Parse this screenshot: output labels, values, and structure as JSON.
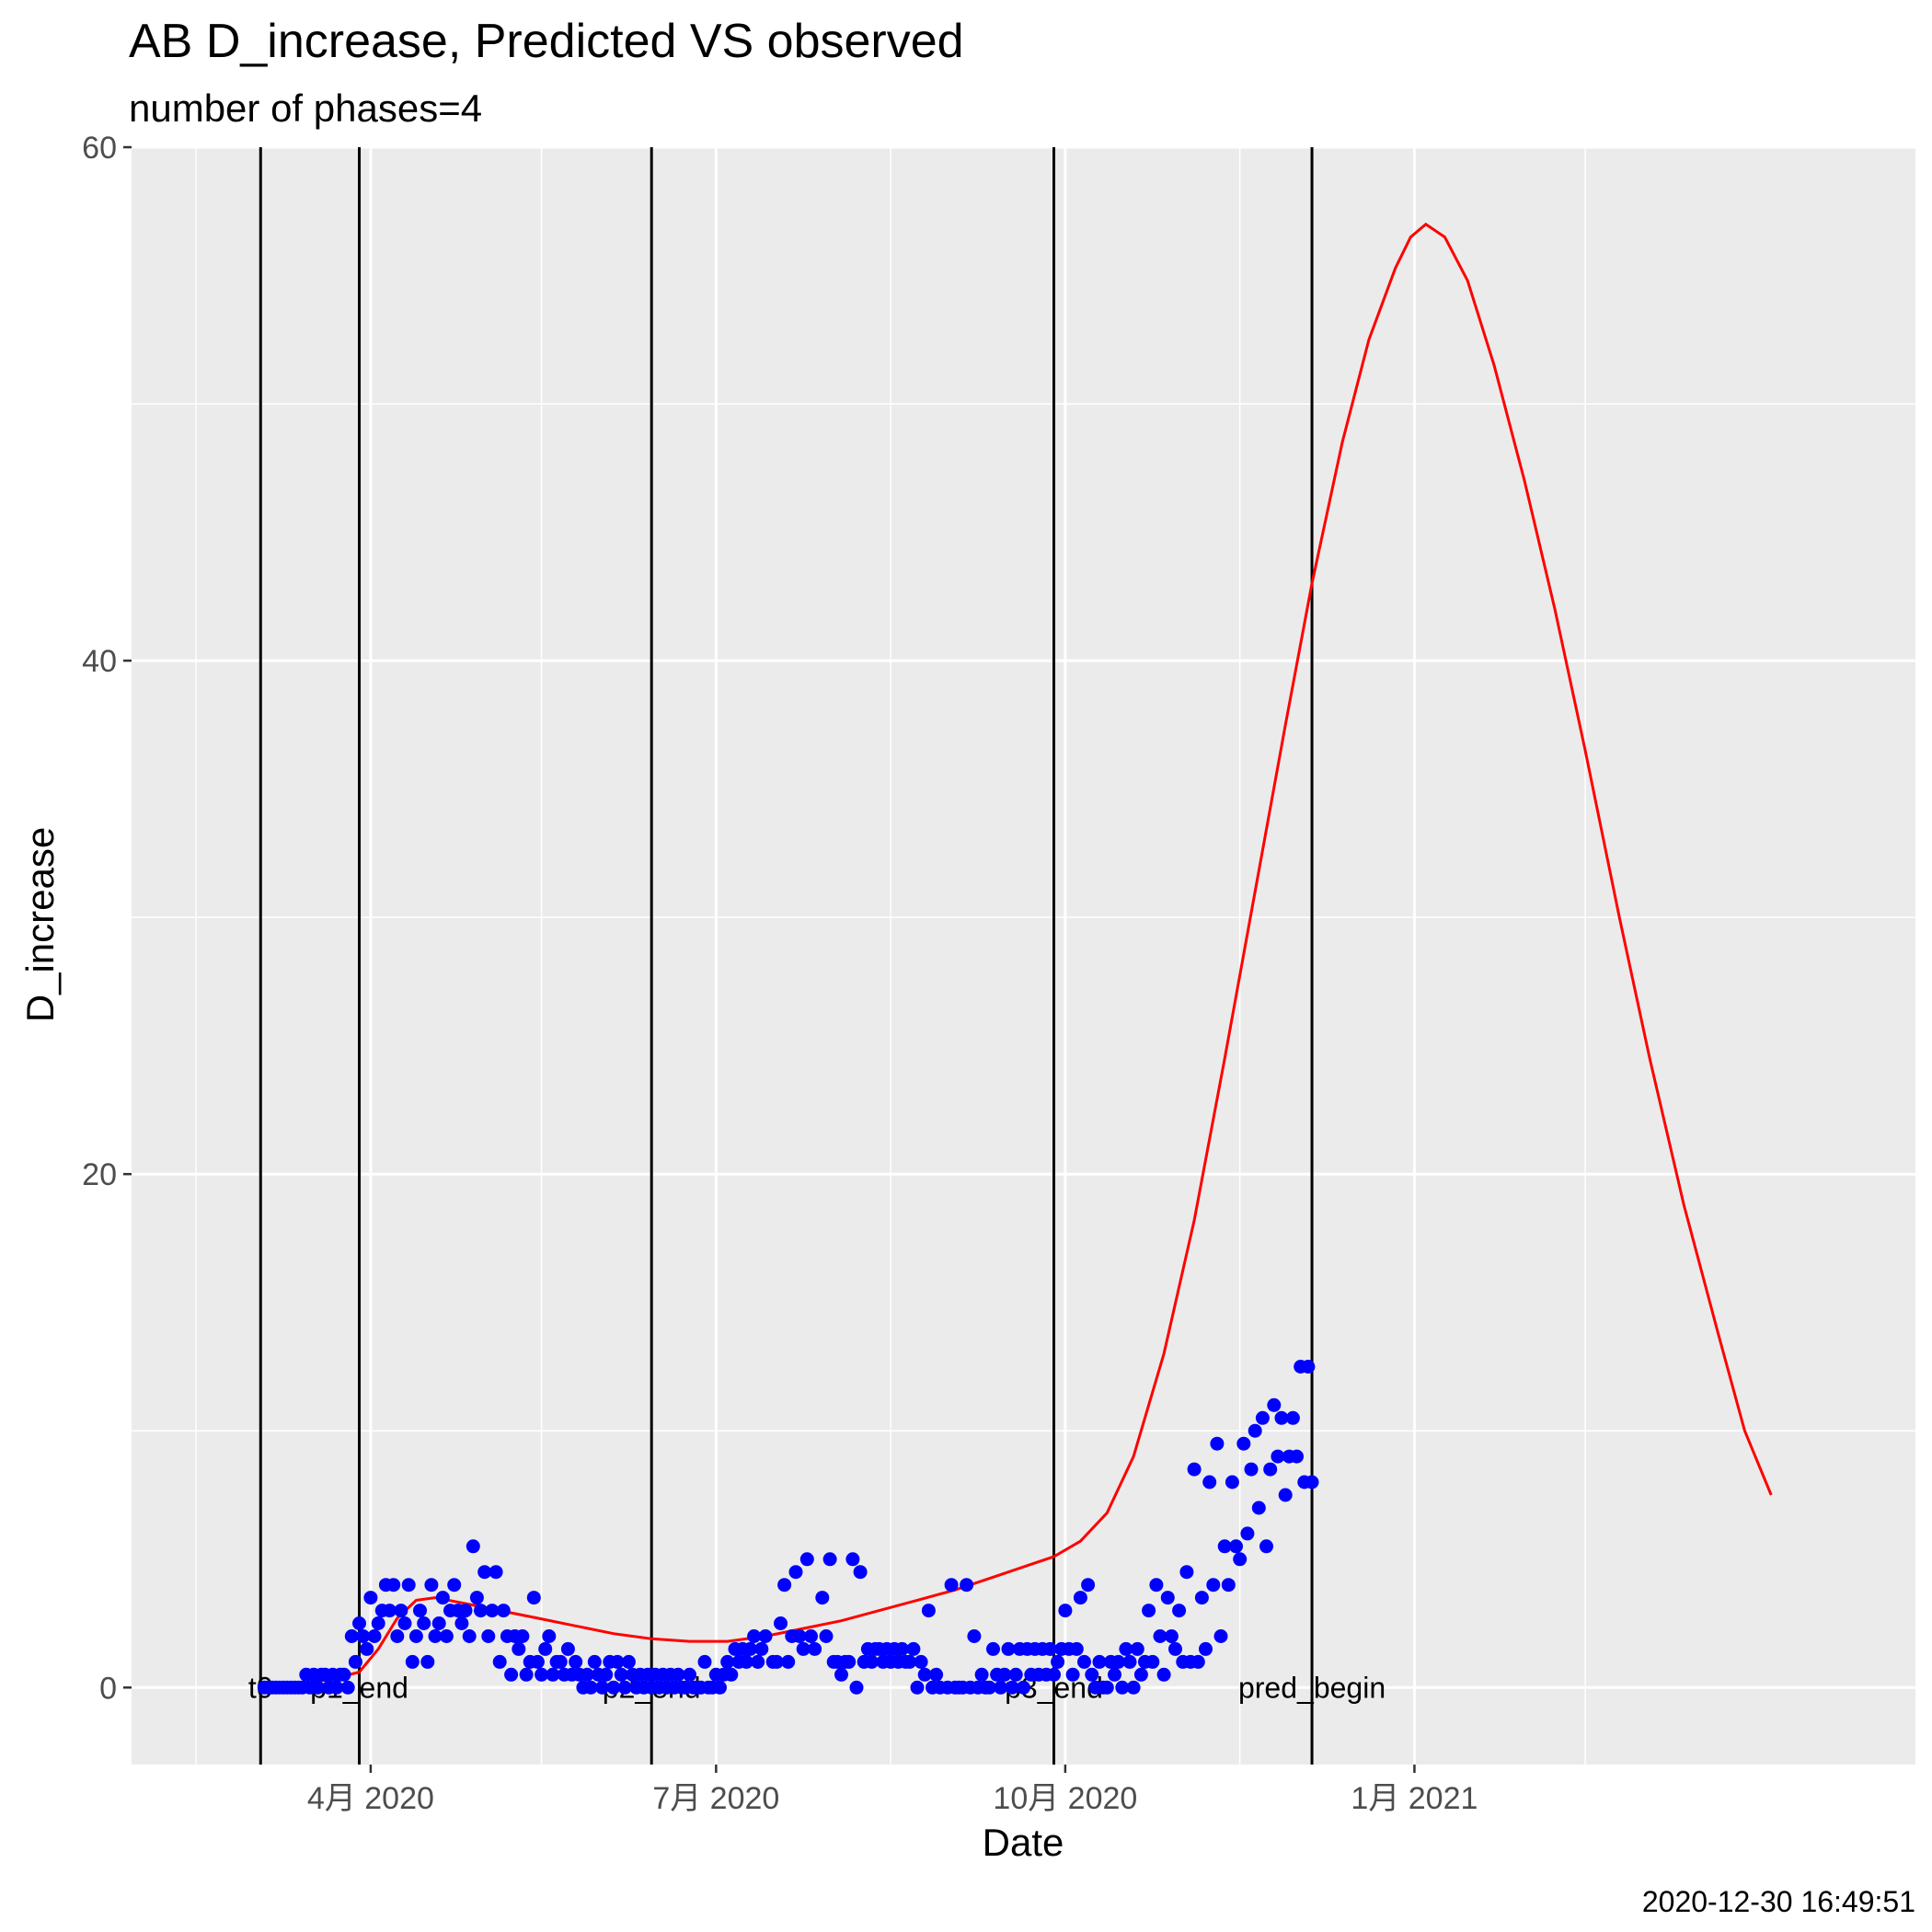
{
  "chart_data": {
    "type": "scatter",
    "title": "AB D_increase, Predicted VS observed",
    "subtitle": "number of phases=4",
    "xlabel": "Date",
    "ylabel": "D_increase",
    "caption": "2020-12-30 16:49:51",
    "ylim": [
      -3,
      60
    ],
    "xlim_days": [
      -32,
      438
    ],
    "x_origin_date": "2020-03-01",
    "y_ticks": [
      0,
      20,
      40,
      60
    ],
    "x_ticks": [
      {
        "label": "4月 2020",
        "day": 31
      },
      {
        "label": "7月 2020",
        "day": 122
      },
      {
        "label": "10月 2020",
        "day": 214
      },
      {
        "label": "1月 2021",
        "day": 306
      }
    ],
    "x_minor_days": [
      -15,
      76,
      168,
      260,
      351
    ],
    "phase_lines": [
      {
        "label": "t0",
        "day": 2
      },
      {
        "label": "p1_end",
        "day": 28
      },
      {
        "label": "p2_end",
        "day": 105
      },
      {
        "label": "p3_end",
        "day": 211
      },
      {
        "label": "pred_begin",
        "day": 279
      }
    ],
    "series": [
      {
        "name": "observed",
        "color": "#0000ff",
        "points": [
          [
            3,
            0
          ],
          [
            4,
            0
          ],
          [
            5,
            0
          ],
          [
            6,
            0
          ],
          [
            7,
            0
          ],
          [
            8,
            0
          ],
          [
            9,
            0
          ],
          [
            10,
            0
          ],
          [
            11,
            0
          ],
          [
            12,
            0
          ],
          [
            13,
            0
          ],
          [
            14,
            0.5
          ],
          [
            15,
            0
          ],
          [
            16,
            0.5
          ],
          [
            17,
            0
          ],
          [
            18,
            0.5
          ],
          [
            19,
            0.5
          ],
          [
            20,
            0
          ],
          [
            21,
            0.5
          ],
          [
            22,
            0
          ],
          [
            23,
            0.5
          ],
          [
            24,
            0.5
          ],
          [
            25,
            0
          ],
          [
            26,
            2
          ],
          [
            27,
            1
          ],
          [
            28,
            2.5
          ],
          [
            29,
            2
          ],
          [
            30,
            1.5
          ],
          [
            31,
            3.5
          ],
          [
            32,
            2
          ],
          [
            33,
            2.5
          ],
          [
            34,
            3
          ],
          [
            35,
            4
          ],
          [
            36,
            3
          ],
          [
            37,
            4
          ],
          [
            38,
            2
          ],
          [
            39,
            3
          ],
          [
            40,
            2.5
          ],
          [
            41,
            4
          ],
          [
            42,
            1
          ],
          [
            43,
            2
          ],
          [
            44,
            3
          ],
          [
            45,
            2.5
          ],
          [
            46,
            1
          ],
          [
            47,
            4
          ],
          [
            48,
            2
          ],
          [
            49,
            2.5
          ],
          [
            50,
            3.5
          ],
          [
            51,
            2
          ],
          [
            52,
            3
          ],
          [
            53,
            4
          ],
          [
            54,
            3
          ],
          [
            55,
            2.5
          ],
          [
            56,
            3
          ],
          [
            57,
            2
          ],
          [
            58,
            5.5
          ],
          [
            59,
            3.5
          ],
          [
            60,
            3
          ],
          [
            61,
            4.5
          ],
          [
            62,
            2
          ],
          [
            63,
            3
          ],
          [
            64,
            4.5
          ],
          [
            65,
            1
          ],
          [
            66,
            3
          ],
          [
            67,
            2
          ],
          [
            68,
            0.5
          ],
          [
            69,
            2
          ],
          [
            70,
            1.5
          ],
          [
            71,
            2
          ],
          [
            72,
            0.5
          ],
          [
            73,
            1
          ],
          [
            74,
            3.5
          ],
          [
            75,
            1
          ],
          [
            76,
            0.5
          ],
          [
            77,
            1.5
          ],
          [
            78,
            2
          ],
          [
            79,
            0.5
          ],
          [
            80,
            1
          ],
          [
            81,
            1
          ],
          [
            82,
            0.5
          ],
          [
            83,
            1.5
          ],
          [
            84,
            0.5
          ],
          [
            85,
            1
          ],
          [
            86,
            0.5
          ],
          [
            87,
            0
          ],
          [
            88,
            0.5
          ],
          [
            89,
            0
          ],
          [
            90,
            1
          ],
          [
            91,
            0.5
          ],
          [
            92,
            0
          ],
          [
            93,
            0.5
          ],
          [
            94,
            1
          ],
          [
            95,
            0
          ],
          [
            96,
            1
          ],
          [
            97,
            0.5
          ],
          [
            98,
            0
          ],
          [
            99,
            1
          ],
          [
            100,
            0.5
          ],
          [
            101,
            0
          ],
          [
            102,
            0.5
          ],
          [
            103,
            0
          ],
          [
            104,
            0.5
          ],
          [
            105,
            0
          ],
          [
            106,
            0.5
          ],
          [
            107,
            0
          ],
          [
            108,
            0.5
          ],
          [
            109,
            0
          ],
          [
            110,
            0.5
          ],
          [
            111,
            0
          ],
          [
            112,
            0.5
          ],
          [
            113,
            0
          ],
          [
            114,
            0
          ],
          [
            115,
            0.5
          ],
          [
            116,
            0
          ],
          [
            117,
            0
          ],
          [
            118,
            0
          ],
          [
            119,
            1
          ],
          [
            120,
            0
          ],
          [
            121,
            0
          ],
          [
            122,
            0.5
          ],
          [
            123,
            0
          ],
          [
            124,
            0.5
          ],
          [
            125,
            1
          ],
          [
            126,
            0.5
          ],
          [
            127,
            1.5
          ],
          [
            128,
            1
          ],
          [
            129,
            1.5
          ],
          [
            130,
            1
          ],
          [
            131,
            1.5
          ],
          [
            132,
            2
          ],
          [
            133,
            1
          ],
          [
            134,
            1.5
          ],
          [
            135,
            2
          ],
          [
            137,
            1
          ],
          [
            138,
            1
          ],
          [
            139,
            2.5
          ],
          [
            140,
            4
          ],
          [
            141,
            1
          ],
          [
            142,
            2
          ],
          [
            143,
            4.5
          ],
          [
            144,
            2
          ],
          [
            145,
            1.5
          ],
          [
            146,
            5
          ],
          [
            147,
            2
          ],
          [
            148,
            1.5
          ],
          [
            150,
            3.5
          ],
          [
            151,
            2
          ],
          [
            152,
            5
          ],
          [
            153,
            1
          ],
          [
            154,
            1
          ],
          [
            155,
            0.5
          ],
          [
            156,
            1
          ],
          [
            157,
            1
          ],
          [
            158,
            5
          ],
          [
            159,
            0
          ],
          [
            160,
            4.5
          ],
          [
            161,
            1
          ],
          [
            162,
            1.5
          ],
          [
            163,
            1
          ],
          [
            164,
            1.5
          ],
          [
            165,
            1.5
          ],
          [
            166,
            1
          ],
          [
            167,
            1.5
          ],
          [
            168,
            1
          ],
          [
            169,
            1.5
          ],
          [
            170,
            1
          ],
          [
            171,
            1.5
          ],
          [
            172,
            1
          ],
          [
            173,
            1
          ],
          [
            174,
            1.5
          ],
          [
            175,
            0
          ],
          [
            176,
            1
          ],
          [
            177,
            0.5
          ],
          [
            178,
            3
          ],
          [
            179,
            0
          ],
          [
            180,
            0.5
          ],
          [
            181,
            0
          ],
          [
            183,
            0
          ],
          [
            184,
            4
          ],
          [
            185,
            0
          ],
          [
            186,
            0
          ],
          [
            187,
            0
          ],
          [
            188,
            4
          ],
          [
            189,
            0
          ],
          [
            190,
            2
          ],
          [
            191,
            0
          ],
          [
            192,
            0.5
          ],
          [
            193,
            0
          ],
          [
            194,
            0
          ],
          [
            195,
            1.5
          ],
          [
            196,
            0.5
          ],
          [
            197,
            0
          ],
          [
            198,
            0.5
          ],
          [
            199,
            1.5
          ],
          [
            200,
            0
          ],
          [
            201,
            0.5
          ],
          [
            202,
            1.5
          ],
          [
            203,
            0
          ],
          [
            204,
            1.5
          ],
          [
            205,
            0.5
          ],
          [
            206,
            1.5
          ],
          [
            207,
            0.5
          ],
          [
            208,
            1.5
          ],
          [
            209,
            0.5
          ],
          [
            210,
            1.5
          ],
          [
            211,
            0.5
          ],
          [
            212,
            1
          ],
          [
            213,
            1.5
          ],
          [
            214,
            3
          ],
          [
            215,
            1.5
          ],
          [
            216,
            0.5
          ],
          [
            217,
            1.5
          ],
          [
            218,
            3.5
          ],
          [
            219,
            1
          ],
          [
            220,
            4
          ],
          [
            221,
            0.5
          ],
          [
            222,
            0
          ],
          [
            223,
            1
          ],
          [
            224,
            0
          ],
          [
            225,
            0
          ],
          [
            226,
            1
          ],
          [
            227,
            0.5
          ],
          [
            228,
            1
          ],
          [
            229,
            0
          ],
          [
            230,
            1.5
          ],
          [
            231,
            1
          ],
          [
            232,
            0
          ],
          [
            233,
            1.5
          ],
          [
            234,
            0.5
          ],
          [
            235,
            1
          ],
          [
            236,
            3
          ],
          [
            237,
            1
          ],
          [
            238,
            4
          ],
          [
            239,
            2
          ],
          [
            240,
            0.5
          ],
          [
            241,
            3.5
          ],
          [
            242,
            2
          ],
          [
            243,
            1.5
          ],
          [
            244,
            3
          ],
          [
            245,
            1
          ],
          [
            246,
            4.5
          ],
          [
            247,
            1
          ],
          [
            248,
            8.5
          ],
          [
            249,
            1
          ],
          [
            250,
            3.5
          ],
          [
            251,
            1.5
          ],
          [
            252,
            8
          ],
          [
            253,
            4
          ],
          [
            254,
            9.5
          ],
          [
            255,
            2
          ],
          [
            256,
            5.5
          ],
          [
            257,
            4
          ],
          [
            258,
            8
          ],
          [
            259,
            5.5
          ],
          [
            260,
            5
          ],
          [
            261,
            9.5
          ],
          [
            262,
            6
          ],
          [
            263,
            8.5
          ],
          [
            264,
            10
          ],
          [
            265,
            7
          ],
          [
            266,
            10.5
          ],
          [
            267,
            5.5
          ],
          [
            268,
            8.5
          ],
          [
            269,
            11
          ],
          [
            270,
            9
          ],
          [
            271,
            10.5
          ],
          [
            272,
            7.5
          ],
          [
            273,
            9
          ],
          [
            274,
            10.5
          ],
          [
            275,
            9
          ],
          [
            276,
            12.5
          ],
          [
            277,
            8
          ],
          [
            278,
            12.5
          ],
          [
            279,
            8
          ]
        ]
      },
      {
        "name": "predicted",
        "color": "#ff0000",
        "points": [
          [
            2,
            0
          ],
          [
            10,
            0.1
          ],
          [
            20,
            0.3
          ],
          [
            28,
            0.6
          ],
          [
            33,
            1.5
          ],
          [
            38,
            2.7
          ],
          [
            43,
            3.4
          ],
          [
            48,
            3.5
          ],
          [
            55,
            3.3
          ],
          [
            65,
            3.0
          ],
          [
            75,
            2.7
          ],
          [
            85,
            2.4
          ],
          [
            95,
            2.1
          ],
          [
            105,
            1.9
          ],
          [
            115,
            1.8
          ],
          [
            125,
            1.8
          ],
          [
            135,
            2.0
          ],
          [
            145,
            2.3
          ],
          [
            155,
            2.6
          ],
          [
            165,
            3.0
          ],
          [
            175,
            3.4
          ],
          [
            185,
            3.8
          ],
          [
            195,
            4.3
          ],
          [
            205,
            4.8
          ],
          [
            211,
            5.1
          ],
          [
            218,
            5.7
          ],
          [
            225,
            6.8
          ],
          [
            232,
            9.0
          ],
          [
            240,
            13.0
          ],
          [
            248,
            18.2
          ],
          [
            256,
            24.5
          ],
          [
            264,
            31.0
          ],
          [
            272,
            37.5
          ],
          [
            279,
            43.0
          ],
          [
            287,
            48.5
          ],
          [
            294,
            52.5
          ],
          [
            301,
            55.3
          ],
          [
            305,
            56.5
          ],
          [
            309,
            57.0
          ],
          [
            314,
            56.5
          ],
          [
            320,
            54.8
          ],
          [
            327,
            51.5
          ],
          [
            335,
            47.0
          ],
          [
            343,
            42.0
          ],
          [
            351,
            36.5
          ],
          [
            360,
            30.0
          ],
          [
            368,
            24.5
          ],
          [
            377,
            18.8
          ],
          [
            386,
            13.8
          ],
          [
            393,
            10.0
          ],
          [
            400,
            7.5
          ]
        ]
      }
    ]
  },
  "colors": {
    "panel": "#ebebeb",
    "grid": "#ffffff",
    "observed": "#0000ff",
    "predicted": "#ff0000",
    "vline": "#000000"
  }
}
